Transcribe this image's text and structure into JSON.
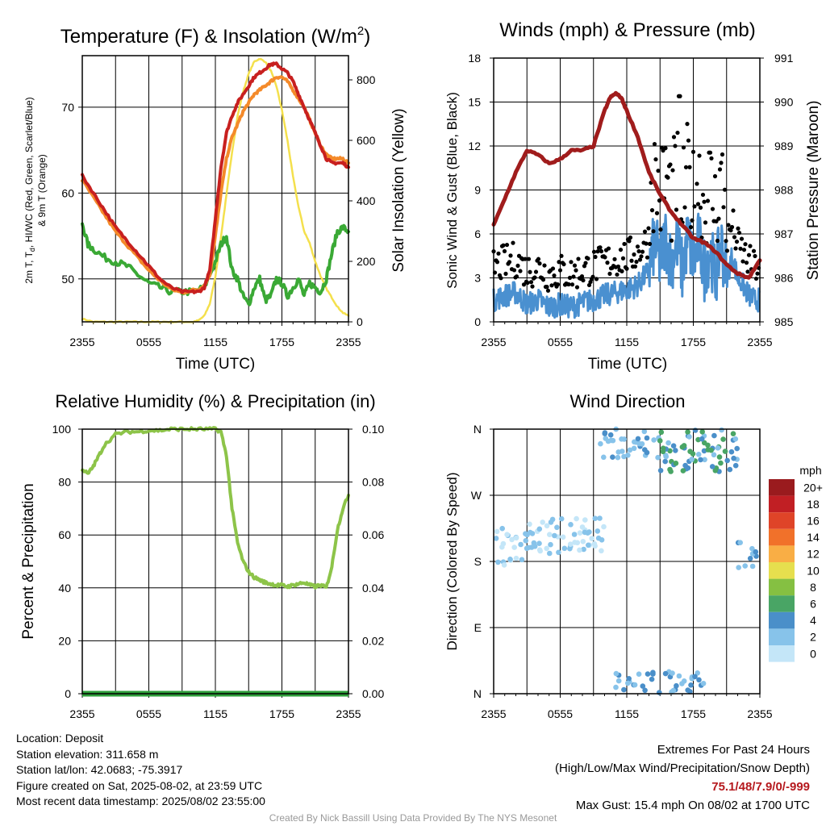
{
  "colors": {
    "temp_red": "#c8201f",
    "temp_orange": "#f48a2a",
    "dewpoint_green": "#3aa935",
    "insolation_yellow": "#f4e04d",
    "wind_blue": "#4a90d0",
    "gust_black": "#000000",
    "pressure_maroon": "#a01c1c",
    "rh_green": "#8dc449",
    "precip_green": "#2e9e3a"
  },
  "chart_data": [
    {
      "type": "line",
      "title": "Temperature (F) & Insolation (W/m²)",
      "title_main": "Temperature (F) & Insolation (W/m",
      "title_sup": "2",
      "title_end": ")",
      "xlabel": "Time (UTC)",
      "ylabel": "2m T, Td, HI/WC (Red, Green, Scarlet/Blue) & 9m T (Orange)",
      "ylabel_line1": "2m T, T",
      "ylabel_sub": "d",
      "ylabel_line1_end": ", HI/WC (Red, Green, Scarlet/Blue)",
      "ylabel_line2": "& 9m T (Orange)",
      "ylabel_right": "Solar Insolation (Yellow)",
      "x_ticks": [
        "2355",
        "0555",
        "1155",
        "1755",
        "2355"
      ],
      "ylim": [
        45,
        76
      ],
      "y_ticks": [
        50,
        60,
        70
      ],
      "ylim_right": [
        0,
        880
      ],
      "y_ticks_right": [
        0,
        200,
        400,
        600,
        800
      ],
      "series": [
        {
          "name": "2m T",
          "x": [
            0,
            1,
            2,
            3,
            4,
            5,
            6,
            7,
            8,
            9,
            10,
            10.5,
            11,
            11.5,
            12,
            12.5,
            13,
            13.5,
            14,
            14.5,
            15,
            15.5,
            16,
            16.5,
            17,
            17.5,
            18,
            18.5,
            19,
            19.5,
            20,
            20.5,
            21,
            21.5,
            22,
            22.5,
            23,
            23.5,
            24
          ],
          "y": [
            62,
            60,
            58,
            56,
            54.5,
            53,
            51.5,
            50,
            49,
            48.5,
            48.5,
            48.5,
            49,
            51,
            57,
            63,
            67,
            69,
            70.5,
            71.5,
            72.5,
            73.5,
            74,
            74.5,
            75,
            75,
            74.5,
            74,
            73,
            71.5,
            70,
            68.5,
            67,
            65.5,
            64,
            63.5,
            63.5,
            63.5,
            63
          ]
        },
        {
          "name": "9m T",
          "x": [
            0,
            1,
            2,
            3,
            4,
            5,
            6,
            7,
            8,
            9,
            10,
            10.5,
            11,
            11.5,
            12,
            12.5,
            13,
            13.5,
            14,
            14.5,
            15,
            15.5,
            16,
            16.5,
            17,
            17.5,
            18,
            18.5,
            19,
            19.5,
            20,
            20.5,
            21,
            21.5,
            22,
            22.5,
            23,
            23.5,
            24
          ],
          "y": [
            61.5,
            59.5,
            57.5,
            55.5,
            54,
            52.5,
            51,
            49.8,
            48.8,
            48.4,
            48.7,
            48.8,
            49.2,
            50.5,
            55,
            60,
            64,
            66.5,
            68,
            69.5,
            70.5,
            71.5,
            72,
            72.5,
            73,
            73.5,
            73.5,
            73,
            72,
            71,
            70,
            68.5,
            67,
            65.5,
            64.5,
            64,
            64,
            64,
            63.5
          ]
        },
        {
          "name": "Td",
          "x": [
            0,
            0.5,
            1,
            2,
            3,
            4,
            5,
            6,
            7,
            8,
            9,
            10,
            11,
            12,
            12.5,
            13,
            13.5,
            14,
            14.5,
            15,
            15.5,
            16,
            16.5,
            17,
            17.5,
            18,
            18.5,
            19,
            19.5,
            20,
            20.5,
            21,
            21.5,
            22,
            22.5,
            23,
            23.5,
            24
          ],
          "y": [
            56.5,
            54,
            53.5,
            52.5,
            52,
            51.5,
            50.5,
            49.5,
            49,
            48.5,
            48.5,
            48.5,
            49,
            52,
            54,
            55,
            51,
            50,
            48,
            47,
            49,
            50,
            47.5,
            48,
            50,
            49.5,
            48,
            49,
            50,
            48,
            49.5,
            49,
            48.5,
            50,
            53,
            55.5,
            56,
            55.5
          ]
        },
        {
          "name": "Insolation",
          "axis": "right",
          "x": [
            0,
            1,
            2,
            3,
            4,
            5,
            6,
            7,
            8,
            9,
            10,
            10.5,
            11,
            11.5,
            12,
            12.5,
            13,
            13.5,
            14,
            14.5,
            15,
            15.5,
            16,
            16.5,
            17,
            17.5,
            18,
            18.5,
            19,
            19.5,
            20,
            20.5,
            21,
            21.5,
            22,
            22.5,
            23,
            23.5,
            24
          ],
          "y": [
            10,
            0,
            0,
            0,
            0,
            0,
            0,
            0,
            0,
            0,
            0,
            5,
            20,
            60,
            150,
            280,
            420,
            560,
            680,
            760,
            820,
            860,
            870,
            860,
            830,
            780,
            700,
            600,
            480,
            380,
            300,
            260,
            200,
            150,
            110,
            80,
            50,
            30,
            20
          ]
        }
      ]
    },
    {
      "type": "line",
      "title": "Winds (mph) & Pressure (mb)",
      "xlabel": "Time (UTC)",
      "ylabel": "Sonic Wind & Gust (Blue, Black)",
      "ylabel_right": "Station Pressure (Maroon)",
      "x_ticks": [
        "2355",
        "0555",
        "1155",
        "1755",
        "2355"
      ],
      "ylim": [
        0,
        18
      ],
      "y_ticks": [
        0,
        3,
        6,
        9,
        12,
        15,
        18
      ],
      "ylim_right": [
        985,
        991
      ],
      "y_ticks_right": [
        985,
        986,
        987,
        988,
        989,
        990,
        991
      ],
      "series": [
        {
          "name": "Pressure",
          "axis": "right",
          "x": [
            0,
            1,
            2,
            3,
            4,
            5,
            6,
            7,
            8,
            9,
            10,
            10.5,
            11,
            11.5,
            12,
            13,
            14,
            15,
            16,
            17,
            18,
            19,
            20,
            21,
            22,
            23,
            24
          ],
          "y": [
            987.2,
            987.8,
            988.4,
            988.9,
            988.8,
            988.6,
            988.7,
            988.9,
            988.9,
            989.0,
            989.8,
            990.1,
            990.2,
            990.1,
            989.8,
            989.2,
            988.4,
            987.9,
            987.5,
            987.2,
            986.9,
            986.8,
            986.6,
            986.3,
            986.1,
            986.0,
            986.4
          ]
        },
        {
          "name": "Sonic Wind",
          "x": [
            0,
            1,
            2,
            3,
            4,
            5,
            6,
            7,
            8,
            9,
            10,
            11,
            12,
            13,
            14,
            14.5,
            15,
            15.5,
            16,
            16.5,
            17,
            17.5,
            18,
            18.5,
            19,
            19.5,
            20,
            20.5,
            21,
            21.5,
            22,
            22.5,
            23,
            23.5,
            24
          ],
          "y": [
            1.5,
            1.8,
            2.0,
            1.2,
            1.5,
            1.0,
            1.2,
            1.0,
            1.3,
            1.5,
            1.8,
            2.0,
            2.2,
            2.5,
            3.5,
            5.5,
            4.0,
            5.8,
            4.0,
            5.5,
            3.5,
            5.8,
            4.0,
            5.5,
            3.5,
            5.0,
            3.0,
            5.5,
            3.0,
            4.5,
            3.0,
            2.5,
            1.8,
            1.5,
            1.5
          ]
        }
      ]
    },
    {
      "type": "line",
      "title": "Relative Humidity (%) & Precipitation (in)",
      "ylabel": "Percent & Precipitation",
      "x_ticks": [
        "2355",
        "0555",
        "1155",
        "1755",
        "2355"
      ],
      "ylim": [
        0,
        100
      ],
      "y_ticks": [
        0,
        20,
        40,
        60,
        80,
        100
      ],
      "ylim_right": [
        0,
        0.1
      ],
      "y_ticks_right": [
        "0.00",
        "0.02",
        "0.04",
        "0.06",
        "0.08",
        "0.10"
      ],
      "series": [
        {
          "name": "RH",
          "x": [
            0,
            0.5,
            1,
            1.5,
            2,
            3,
            4,
            5,
            6,
            7,
            8,
            9,
            10,
            11,
            12,
            12.5,
            13,
            13.5,
            14,
            14.5,
            15,
            15.5,
            16,
            16.5,
            17,
            17.5,
            18,
            18.5,
            19,
            19.5,
            20,
            20.5,
            21,
            21.5,
            22,
            22.5,
            23,
            23.5,
            24
          ],
          "y": [
            85,
            83,
            86,
            90,
            94,
            98,
            99,
            99,
            99.5,
            99.5,
            100,
            100,
            100,
            100,
            100,
            99,
            90,
            70,
            57,
            50,
            46,
            44,
            43,
            42,
            41.5,
            41,
            41,
            40.5,
            41,
            41.5,
            42,
            41,
            40.5,
            41,
            40,
            48,
            62,
            70,
            75
          ]
        },
        {
          "name": "Precipitation",
          "axis": "right",
          "x": [
            0,
            24
          ],
          "y": [
            0,
            0
          ]
        }
      ]
    },
    {
      "type": "scatter",
      "title": "Wind Direction",
      "ylabel": "Direction (Colored By Speed)",
      "x_ticks": [
        "2355",
        "0555",
        "1155",
        "1755",
        "2355"
      ],
      "y_ticks": [
        "N",
        "E",
        "S",
        "W",
        "N"
      ],
      "ylim": [
        0,
        360
      ],
      "legend_title": "mph",
      "legend_labels": [
        "0",
        "2",
        "4",
        "6",
        "8",
        "10",
        "12",
        "14",
        "16",
        "18",
        "20+"
      ],
      "legend_colors": [
        "#c4e6f8",
        "#87c3ea",
        "#4a8fc9",
        "#49a565",
        "#85c042",
        "#e6df4e",
        "#f9ae45",
        "#f1712a",
        "#df4428",
        "#c11f24",
        "#9a1b1e"
      ]
    }
  ],
  "info_left": [
    "Location: Deposit",
    "Station elevation: 311.658 m",
    "Station lat/lon: 42.0683; -75.3917",
    "Figure created on Sat, 2025-08-02, at 23:59 UTC",
    "Most recent data timestamp: 2025/08/02 23:55:00"
  ],
  "info_right": {
    "line1": "Extremes For Past 24 Hours",
    "line2": "(High/Low/Max Wind/Precipitation/Snow Depth)",
    "values": "75.1/48/7.9/0/-999",
    "gust": "Max Gust: 15.4 mph On 08/02 at 1700 UTC"
  },
  "credit": "Created By Nick Bassill Using Data Provided By The NYS Mesonet"
}
